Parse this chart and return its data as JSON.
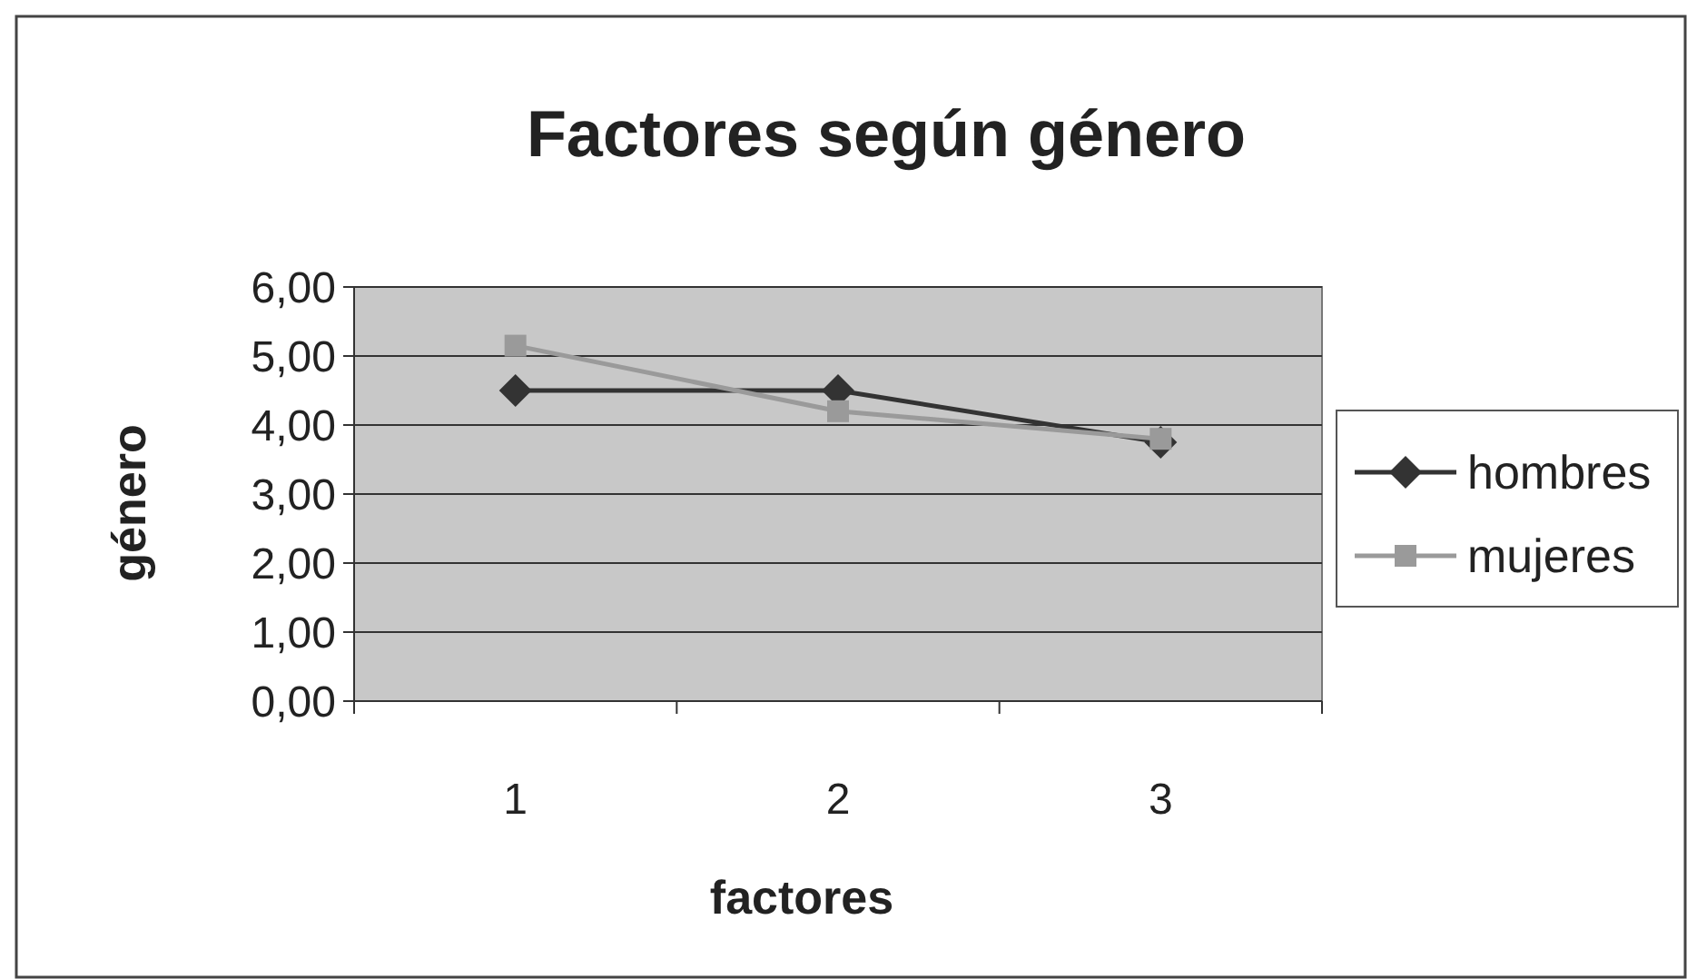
{
  "chart_data": {
    "type": "line",
    "title": "Factores según género",
    "xlabel": "factores",
    "ylabel": "género",
    "categories": [
      "1",
      "2",
      "3"
    ],
    "series": [
      {
        "name": "hombres",
        "color": "#333333",
        "marker": "diamond",
        "values": [
          4.5,
          4.5,
          3.75
        ]
      },
      {
        "name": "mujeres",
        "color": "#9a9a9a",
        "marker": "square",
        "values": [
          5.15,
          4.2,
          3.8
        ]
      }
    ],
    "ylim": [
      0,
      6
    ],
    "yticks": [
      {
        "value": 0,
        "label": "0,00"
      },
      {
        "value": 1,
        "label": "1,00"
      },
      {
        "value": 2,
        "label": "2,00"
      },
      {
        "value": 3,
        "label": "3,00"
      },
      {
        "value": 4,
        "label": "4,00"
      },
      {
        "value": 5,
        "label": "5,00"
      },
      {
        "value": 6,
        "label": "6,00"
      }
    ],
    "grid": "y",
    "legend": "right"
  }
}
